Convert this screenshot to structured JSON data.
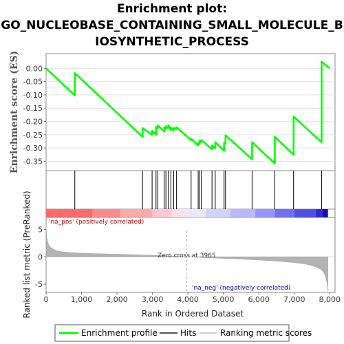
{
  "chart_data": {
    "type": "line",
    "title_lines": [
      "Enrichment plot:",
      "GO_NUCLEOBASE_CONTAINING_SMALL_MOLECULE_B",
      "IOSYNTHETIC_PROCESS"
    ],
    "es_ylabel": "Enrichment score (ES)",
    "metric_ylabel": "Ranked list metric (PreRanked)",
    "xlabel": "Rank in Ordered Dataset",
    "xlim": [
      0,
      8150
    ],
    "es_ylim": [
      -0.385,
      0.055
    ],
    "metric_ylim": [
      -6.5,
      7.2
    ],
    "x_ticks": [
      0,
      1000,
      2000,
      3000,
      4000,
      5000,
      6000,
      7000,
      8000
    ],
    "x_tick_labels": [
      "0",
      "1,000",
      "2,000",
      "3,000",
      "4,000",
      "5,000",
      "6,000",
      "7,000",
      "8,000"
    ],
    "es_ticks": [
      0.0,
      -0.05,
      -0.1,
      -0.15,
      -0.2,
      -0.25,
      -0.3,
      -0.35
    ],
    "es_tick_labels": [
      "0.00",
      "-0.05",
      "-0.10",
      "-0.15",
      "-0.20",
      "-0.25",
      "-0.30",
      "-0.35"
    ],
    "metric_ticks": [
      5,
      0,
      -5
    ],
    "metric_tick_labels": [
      "5",
      "0",
      "-5"
    ],
    "enrichment_profile": {
      "name": "Enrichment profile",
      "color": "#00ff00",
      "x": [
        0,
        810,
        811,
        2720,
        2721,
        2990,
        2991,
        3100,
        3101,
        3150,
        3151,
        3330,
        3331,
        3380,
        3381,
        3450,
        3451,
        3520,
        3521,
        3600,
        3601,
        3680,
        3681,
        4090,
        4091,
        4290,
        4291,
        4330,
        4331,
        4380,
        4381,
        4680,
        4681,
        4770,
        4771,
        5020,
        5021,
        5060,
        5061,
        5810,
        5811,
        6450,
        6451,
        6980,
        6981,
        7770,
        7771,
        8000
      ],
      "y": [
        0.0,
        -0.102,
        -0.018,
        -0.258,
        -0.225,
        -0.25,
        -0.235,
        -0.25,
        -0.22,
        -0.225,
        -0.215,
        -0.238,
        -0.222,
        -0.228,
        -0.218,
        -0.225,
        -0.215,
        -0.232,
        -0.222,
        -0.235,
        -0.225,
        -0.228,
        -0.222,
        -0.27,
        -0.265,
        -0.29,
        -0.28,
        -0.283,
        -0.272,
        -0.278,
        -0.27,
        -0.305,
        -0.29,
        -0.3,
        -0.278,
        -0.31,
        -0.28,
        -0.282,
        -0.252,
        -0.342,
        -0.278,
        -0.358,
        -0.258,
        -0.325,
        -0.182,
        -0.278,
        0.025,
        0.0
      ]
    },
    "hits": [
      810,
      2720,
      2990,
      3100,
      3150,
      3330,
      3380,
      3450,
      3520,
      3600,
      3680,
      4090,
      4290,
      4330,
      4380,
      4680,
      4770,
      5020,
      5060,
      5810,
      6450,
      6980,
      7770
    ],
    "ranked_metric": {
      "name": "Ranking metric scores",
      "x": [
        0,
        20,
        60,
        120,
        200,
        300,
        450,
        650,
        900,
        1200,
        1600,
        2000,
        2500,
        3000,
        3500,
        3965,
        4500,
        5000,
        5500,
        6000,
        6500,
        7000,
        7300,
        7500,
        7650,
        7750,
        7820,
        7870,
        7900,
        7920,
        7935,
        7945,
        7950
      ],
      "y": [
        5.6,
        3.4,
        2.4,
        1.8,
        1.4,
        1.1,
        0.9,
        0.8,
        0.7,
        0.62,
        0.55,
        0.48,
        0.38,
        0.28,
        0.15,
        0.0,
        -0.15,
        -0.28,
        -0.42,
        -0.58,
        -0.78,
        -1.05,
        -1.3,
        -1.6,
        -1.95,
        -2.3,
        -2.8,
        -3.4,
        -4.0,
        -4.6,
        -5.2,
        -5.8,
        -6.3
      ]
    },
    "heatmap_bands": [
      {
        "x0": 0,
        "x1": 1300,
        "color": "#ff6a6a"
      },
      {
        "x0": 1300,
        "x1": 2100,
        "color": "#ff8a8a"
      },
      {
        "x0": 2100,
        "x1": 3000,
        "color": "#ffaaaa"
      },
      {
        "x0": 3000,
        "x1": 3550,
        "color": "#ffc8d4"
      },
      {
        "x0": 3550,
        "x1": 3965,
        "color": "#ffe0ea"
      },
      {
        "x0": 3965,
        "x1": 4500,
        "color": "#e8e8ff"
      },
      {
        "x0": 4500,
        "x1": 5200,
        "color": "#d2d2ff"
      },
      {
        "x0": 5200,
        "x1": 5900,
        "color": "#b8b8ff"
      },
      {
        "x0": 5900,
        "x1": 6450,
        "color": "#9696ff"
      },
      {
        "x0": 6450,
        "x1": 7000,
        "color": "#7070f0"
      },
      {
        "x0": 7000,
        "x1": 7600,
        "color": "#5050e0"
      },
      {
        "x0": 7600,
        "x1": 7800,
        "color": "#2e2ed0"
      },
      {
        "x0": 7800,
        "x1": 7950,
        "color": "#1010b8"
      }
    ],
    "zero_cross_x": 3965,
    "zero_cross_text": "Zero cross at 3965",
    "na_pos_text": "'na_pos' (positively correlated)",
    "na_neg_text": "'na_neg' (negatively correlated)",
    "colors": {
      "na_pos": "#cc0000",
      "na_neg": "#0000cc",
      "hits": "#000000",
      "metric_fill": "#b3b3b3"
    },
    "legend": {
      "position": "bottom",
      "items": [
        {
          "label": "Enrichment profile",
          "color": "#00ff00",
          "kind": "thick-line"
        },
        {
          "label": "Hits",
          "color": "#555555",
          "kind": "line"
        },
        {
          "label": "Ranking metric scores",
          "color": "#d0d0d0",
          "kind": "line"
        }
      ]
    }
  }
}
